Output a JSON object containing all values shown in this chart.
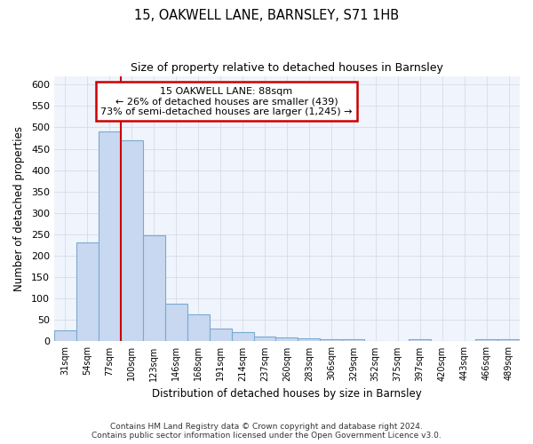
{
  "title1": "15, OAKWELL LANE, BARNSLEY, S71 1HB",
  "title2": "Size of property relative to detached houses in Barnsley",
  "xlabel": "Distribution of detached houses by size in Barnsley",
  "ylabel": "Number of detached properties",
  "footnote": "Contains HM Land Registry data © Crown copyright and database right 2024.\nContains public sector information licensed under the Open Government Licence v3.0.",
  "bin_labels": [
    "31sqm",
    "54sqm",
    "77sqm",
    "100sqm",
    "123sqm",
    "146sqm",
    "168sqm",
    "191sqm",
    "214sqm",
    "237sqm",
    "260sqm",
    "283sqm",
    "306sqm",
    "329sqm",
    "352sqm",
    "375sqm",
    "397sqm",
    "420sqm",
    "443sqm",
    "466sqm",
    "489sqm"
  ],
  "bar_values": [
    25,
    232,
    490,
    470,
    248,
    87,
    63,
    30,
    22,
    12,
    10,
    8,
    5,
    5,
    0,
    0,
    5,
    0,
    0,
    5,
    5
  ],
  "bar_color": "#c8d8f0",
  "bar_edge_color": "#7aaad0",
  "annotation_line1": "15 OAKWELL LANE: 88sqm",
  "annotation_line2": "← 26% of detached houses are smaller (439)",
  "annotation_line3": "73% of semi-detached houses are larger (1,245) →",
  "annotation_box_color": "#ffffff",
  "annotation_box_edge": "#cc0000",
  "vline_color": "#cc0000",
  "grid_color": "#d8dce8",
  "background_color": "#ffffff",
  "plot_bg_color": "#f0f4fc",
  "ylim": [
    0,
    620
  ],
  "yticks": [
    0,
    50,
    100,
    150,
    200,
    250,
    300,
    350,
    400,
    450,
    500,
    550,
    600
  ],
  "vline_x": 2.5
}
